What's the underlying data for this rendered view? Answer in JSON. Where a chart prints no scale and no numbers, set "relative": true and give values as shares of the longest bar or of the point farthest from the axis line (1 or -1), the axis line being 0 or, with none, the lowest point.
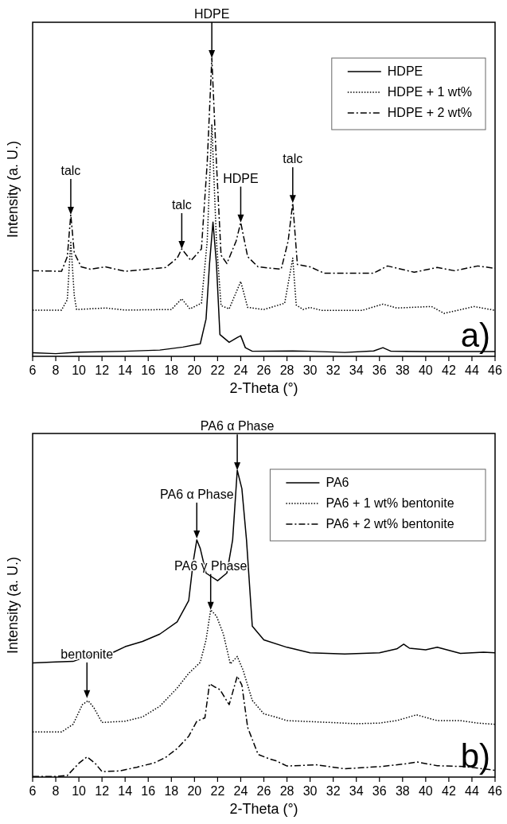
{
  "chart_data": [
    {
      "type": "line",
      "relative": true,
      "xlabel": "2-Theta (°)",
      "ylabel": "Intensity (a. U.)",
      "xlim": [
        6,
        46
      ],
      "xticks": [
        6,
        8,
        10,
        12,
        14,
        16,
        18,
        20,
        22,
        24,
        26,
        28,
        30,
        32,
        34,
        36,
        38,
        40,
        42,
        44,
        46
      ],
      "legend": "top right",
      "series": [
        {
          "name": "HDPE",
          "color": "#000000",
          "line_style": "solid",
          "x": [
            6,
            8,
            10,
            14,
            17,
            19,
            20.5,
            21,
            21.3,
            21.6,
            21.9,
            22.2,
            23,
            23.7,
            24,
            24.4,
            25,
            28.5,
            30,
            33,
            35.5,
            36.3,
            37,
            40,
            46
          ],
          "values": [
            0.012,
            0.009,
            0.014,
            0.017,
            0.021,
            0.031,
            0.042,
            0.125,
            0.31,
            0.45,
            0.31,
            0.073,
            0.047,
            0.063,
            0.069,
            0.029,
            0.017,
            0.018,
            0.017,
            0.013,
            0.018,
            0.029,
            0.017,
            0.016,
            0.016
          ]
        },
        {
          "name": "HDPE + 1 wt%",
          "color": "#000000",
          "line_style": "dotted",
          "x": [
            6,
            8.5,
            9,
            9.3,
            9.6,
            9.8,
            12.3,
            14,
            18,
            18.9,
            19.6,
            20.6,
            21.1,
            21.5,
            21.9,
            22.3,
            23,
            24,
            24.6,
            26,
            27.8,
            28.5,
            28.8,
            29.4,
            30,
            31,
            34.5,
            36.3,
            37.5,
            40.5,
            41.6,
            44.2,
            46
          ],
          "values": [
            0.155,
            0.155,
            0.19,
            0.386,
            0.204,
            0.157,
            0.162,
            0.155,
            0.157,
            0.193,
            0.159,
            0.178,
            0.386,
            0.778,
            0.386,
            0.17,
            0.159,
            0.251,
            0.164,
            0.157,
            0.178,
            0.329,
            0.172,
            0.157,
            0.164,
            0.154,
            0.154,
            0.175,
            0.162,
            0.167,
            0.144,
            0.167,
            0.154
          ]
        },
        {
          "name": "HDPE + 2 wt%",
          "color": "#000000",
          "line_style": "dashdot",
          "x": [
            6,
            8.5,
            9,
            9.3,
            9.6,
            10.2,
            11,
            12.3,
            14,
            17.5,
            18.5,
            18.9,
            19.7,
            20.6,
            21.1,
            21.5,
            21.9,
            22.3,
            22.8,
            23.6,
            24,
            24.6,
            25.5,
            27.5,
            28.1,
            28.5,
            28.9,
            30,
            31.2,
            35.5,
            36.7,
            39,
            41,
            42.5,
            44.5,
            46
          ],
          "values": [
            0.287,
            0.285,
            0.334,
            0.475,
            0.347,
            0.3,
            0.292,
            0.3,
            0.285,
            0.298,
            0.329,
            0.36,
            0.321,
            0.36,
            0.648,
            1,
            0.648,
            0.339,
            0.311,
            0.386,
            0.449,
            0.334,
            0.3,
            0.292,
            0.386,
            0.514,
            0.308,
            0.3,
            0.279,
            0.279,
            0.303,
            0.282,
            0.298,
            0.287,
            0.303,
            0.295
          ]
        }
      ],
      "annotations": [
        {
          "text": "talc",
          "x": 9.3,
          "y": 0.475
        },
        {
          "text": "talc",
          "x": 18.9,
          "y": 0.36
        },
        {
          "text": "HDPE",
          "x": 21.5,
          "y": 1
        },
        {
          "text": "HDPE",
          "x": 24,
          "y": 0.449
        },
        {
          "text": "talc",
          "x": 28.5,
          "y": 0.514
        },
        "a)"
      ]
    },
    {
      "type": "line",
      "relative": true,
      "xlabel": "2-Theta (°)",
      "ylabel": "Intensity (a. U.)",
      "xlim": [
        6,
        46
      ],
      "xticks": [
        6,
        8,
        10,
        12,
        14,
        16,
        18,
        20,
        22,
        24,
        26,
        28,
        30,
        32,
        34,
        36,
        38,
        40,
        42,
        44,
        46
      ],
      "legend": "top right",
      "series": [
        {
          "name": "PA6",
          "color": "#000000",
          "line_style": "solid",
          "x": [
            6,
            8,
            9.5,
            11,
            13,
            14,
            15.5,
            17,
            18.5,
            19.5,
            19.9,
            20.2,
            20.5,
            21,
            22,
            22.8,
            23.3,
            23.7,
            24.1,
            24.5,
            25,
            26,
            28,
            30,
            33,
            36,
            37.5,
            38.1,
            38.6,
            40,
            41,
            43,
            45,
            46
          ],
          "values": [
            0.372,
            0.375,
            0.377,
            0.397,
            0.407,
            0.425,
            0.442,
            0.466,
            0.506,
            0.575,
            0.704,
            0.773,
            0.745,
            0.665,
            0.64,
            0.665,
            0.773,
            1,
            0.94,
            0.773,
            0.492,
            0.447,
            0.423,
            0.405,
            0.401,
            0.405,
            0.418,
            0.433,
            0.42,
            0.415,
            0.423,
            0.403,
            0.407,
            0.405
          ]
        },
        {
          "name": "PA6 + 1 wt% bentonite",
          "color": "#000000",
          "line_style": "dotted",
          "x": [
            6,
            8.5,
            9.5,
            10.3,
            10.8,
            11.3,
            12,
            14,
            15.5,
            17,
            18.5,
            19.5,
            20.5,
            21,
            21.4,
            21.9,
            22.5,
            23.1,
            23.7,
            24.2,
            25,
            26,
            27,
            28,
            30.5,
            34,
            36,
            37.5,
            39.2,
            41,
            43,
            44.5,
            46
          ],
          "values": [
            0.147,
            0.147,
            0.172,
            0.236,
            0.249,
            0.226,
            0.178,
            0.182,
            0.196,
            0.231,
            0.29,
            0.338,
            0.374,
            0.447,
            0.545,
            0.525,
            0.466,
            0.369,
            0.393,
            0.349,
            0.25,
            0.206,
            0.196,
            0.184,
            0.18,
            0.174,
            0.176,
            0.184,
            0.203,
            0.184,
            0.184,
            0.176,
            0.172
          ]
        },
        {
          "name": "PA6 + 2 wt% bentonite",
          "color": "#000000",
          "line_style": "dashdot",
          "x": [
            6,
            8,
            9,
            10,
            10.7,
            11.4,
            12,
            13.5,
            15,
            16.5,
            17.5,
            18.5,
            19.5,
            20.2,
            20.9,
            21.3,
            21.7,
            22.2,
            23,
            23.7,
            24.1,
            24.6,
            25.5,
            26.5,
            27,
            28,
            30.5,
            33,
            36,
            38,
            39.3,
            41,
            43.5,
            46
          ],
          "values": [
            0.002,
            0.002,
            0.005,
            0.045,
            0.066,
            0.045,
            0.018,
            0.02,
            0.032,
            0.046,
            0.064,
            0.093,
            0.133,
            0.182,
            0.193,
            0.304,
            0.295,
            0.285,
            0.236,
            0.329,
            0.3,
            0.162,
            0.074,
            0.059,
            0.054,
            0.036,
            0.04,
            0.027,
            0.034,
            0.042,
            0.049,
            0.037,
            0.034,
            0.022
          ]
        }
      ],
      "annotations": [
        {
          "text": "PA6 α Phase",
          "x": 20.2,
          "y": 0.778
        },
        {
          "text": "PA6 α Phase",
          "x": 23.7,
          "y": 1
        },
        {
          "text": "PA6 γ Phase",
          "x": 21.4,
          "y": 0.545
        },
        {
          "text": "bentonite",
          "x": 10.7,
          "y": 0.257
        },
        "b)"
      ]
    }
  ]
}
